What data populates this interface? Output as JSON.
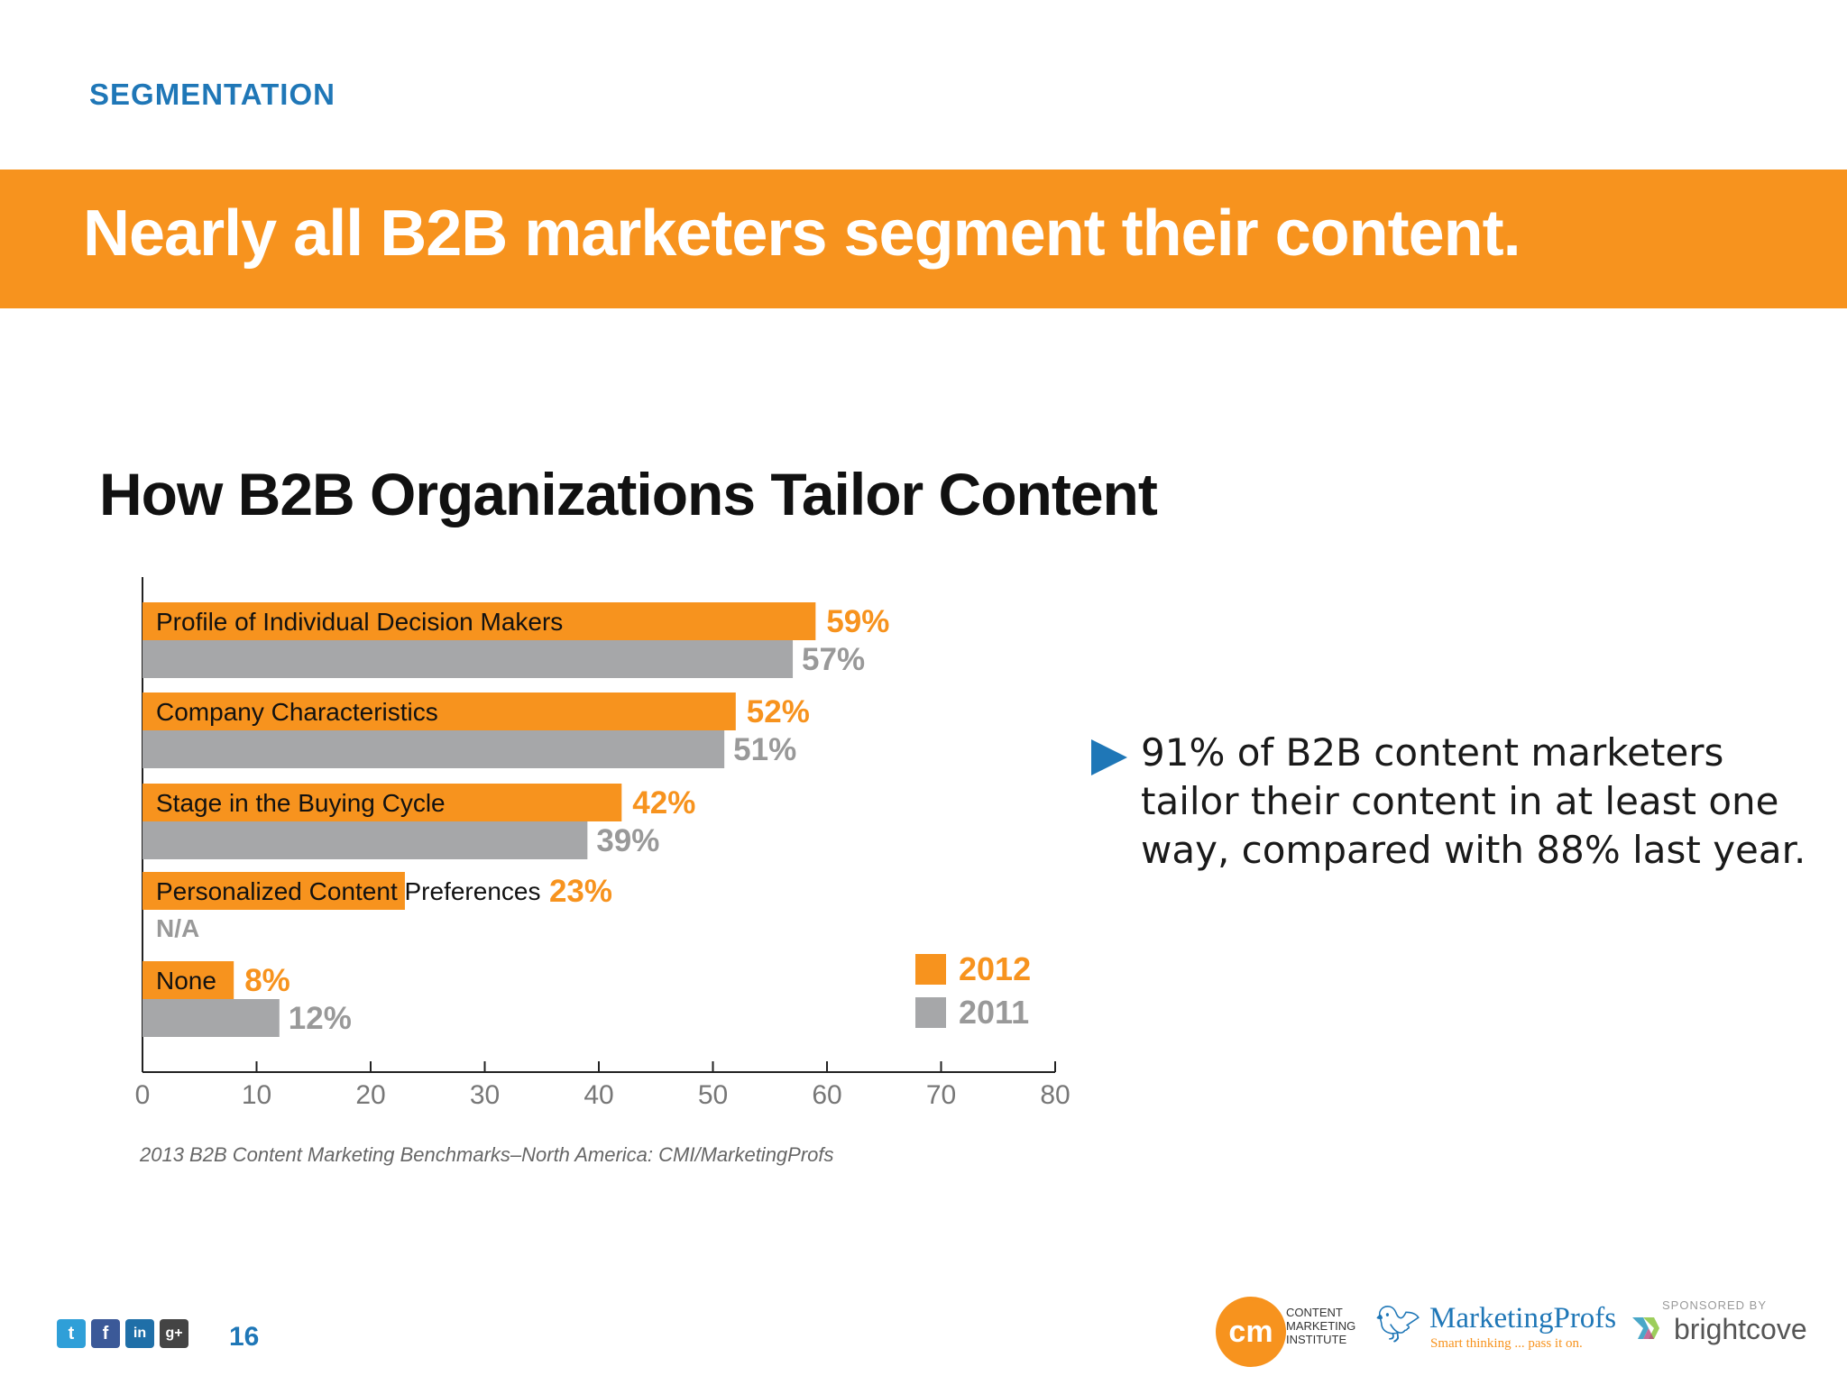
{
  "header": {
    "section": "SEGMENTATION",
    "banner_title": "Nearly all B2B marketers segment their content."
  },
  "chart_title": "How B2B Organizations Tailor Content",
  "chart_data": {
    "type": "bar",
    "orientation": "horizontal",
    "title": "How B2B Organizations Tailor Content",
    "categories": [
      "Profile of Individual Decision Makers",
      "Company Characteristics",
      "Stage in the Buying Cycle",
      "Personalized Content Preferences",
      "None"
    ],
    "series": [
      {
        "name": "2012",
        "color": "#f7931e",
        "values": [
          59,
          52,
          42,
          23,
          8
        ],
        "labels": [
          "59%",
          "52%",
          "42%",
          "23%",
          "8%"
        ]
      },
      {
        "name": "2011",
        "color": "#a6a7a9",
        "values": [
          57,
          51,
          39,
          null,
          12
        ],
        "labels": [
          "57%",
          "51%",
          "39%",
          "N/A",
          "12%"
        ]
      }
    ],
    "xlim": [
      0,
      80
    ],
    "xticks": [
      0,
      10,
      20,
      30,
      40,
      50,
      60,
      70,
      80
    ],
    "legend_position": "bottom-right",
    "grid": false
  },
  "callout": {
    "icon": "triangle-right-icon",
    "text": "91% of B2B content marketers tailor their content in at least one way, compared with 88% last year."
  },
  "source": "2013 B2B Content Marketing Benchmarks–North America: CMI/MarketingProfs",
  "footer": {
    "page_number": "16",
    "social_icons": [
      "twitter-icon",
      "facebook-icon",
      "linkedin-icon",
      "google-plus-icon"
    ],
    "cmi": {
      "mark": "cm",
      "text_lines": [
        "CONTENT",
        "MARKETING",
        "INSTITUTE"
      ]
    },
    "marketingprofs": {
      "name": "MarketingProfs",
      "tagline": "Smart thinking ... pass it on."
    },
    "sponsor": {
      "label": "SPONSORED BY",
      "name": "brightcove"
    }
  }
}
